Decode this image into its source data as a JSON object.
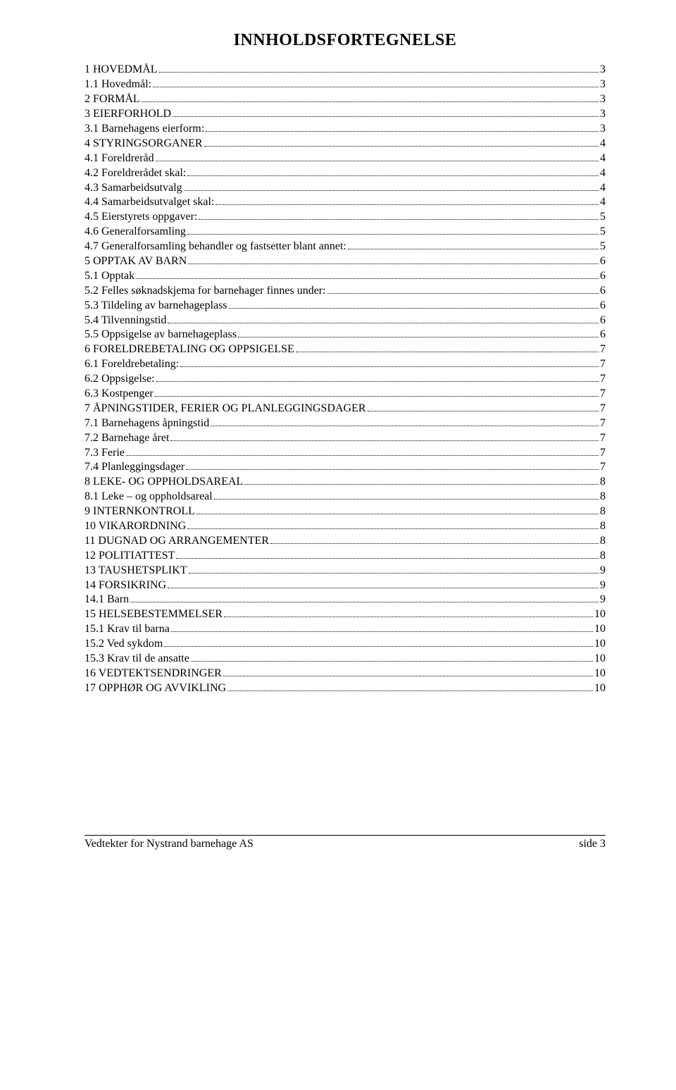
{
  "title": "INNHOLDSFORTEGNELSE",
  "toc": [
    {
      "label": "1 HOVEDMÅL",
      "page": "3"
    },
    {
      "label": "1.1 Hovedmål:",
      "page": "3"
    },
    {
      "label": "2 FORMÅL",
      "page": "3"
    },
    {
      "label": "3 EIERFORHOLD",
      "page": "3"
    },
    {
      "label": "3.1 Barnehagens eierform:",
      "page": "3"
    },
    {
      "label": "4 STYRINGSORGANER",
      "page": "4"
    },
    {
      "label": "4.1 Foreldreråd",
      "page": "4"
    },
    {
      "label": "4.2 Foreldrerådet skal:",
      "page": "4"
    },
    {
      "label": "4.3 Samarbeidsutvalg",
      "page": "4"
    },
    {
      "label": "4.4 Samarbeidsutvalget skal:",
      "page": "4"
    },
    {
      "label": "4.5 Eierstyrets oppgaver:",
      "page": "5"
    },
    {
      "label": "4.6 Generalforsamling",
      "page": "5"
    },
    {
      "label": "4.7 Generalforsamling behandler og fastsetter blant annet:",
      "page": "5"
    },
    {
      "label": "5 OPPTAK AV BARN",
      "page": "6"
    },
    {
      "label": "5.1 Opptak",
      "page": "6"
    },
    {
      "label": "5.2 Felles søknadskjema for barnehager finnes under:",
      "page": "6"
    },
    {
      "label": "5.3 Tildeling av barnehageplass",
      "page": "6"
    },
    {
      "label": "5.4 Tilvenningstid",
      "page": "6"
    },
    {
      "label": "5.5 Oppsigelse av barnehageplass",
      "page": "6"
    },
    {
      "label": "6 FORELDREBETALING OG OPPSIGELSE",
      "page": "7"
    },
    {
      "label": "6.1 Foreldrebetaling:",
      "page": "7"
    },
    {
      "label": "6.2 Oppsigelse:",
      "page": "7"
    },
    {
      "label": "6.3 Kostpenger",
      "page": "7"
    },
    {
      "label": "7 ÅPNINGSTIDER, FERIER OG PLANLEGGINGSDAGER",
      "page": "7"
    },
    {
      "label": "7.1 Barnehagens åpningstid",
      "page": "7"
    },
    {
      "label": "7.2 Barnehage året",
      "page": "7"
    },
    {
      "label": "7.3 Ferie",
      "page": "7"
    },
    {
      "label": "7.4 Planleggingsdager",
      "page": "7"
    },
    {
      "label": "8 LEKE- OG OPPHOLDSAREAL",
      "page": "8"
    },
    {
      "label": "8.1 Leke – og oppholdsareal",
      "page": "8"
    },
    {
      "label": "9 INTERNKONTROLL",
      "page": "8"
    },
    {
      "label": "10 VIKARORDNING",
      "page": "8"
    },
    {
      "label": "11 DUGNAD OG ARRANGEMENTER",
      "page": "8"
    },
    {
      "label": "12 POLITIATTEST",
      "page": "8"
    },
    {
      "label": "13 TAUSHETSPLIKT",
      "page": "9"
    },
    {
      "label": "14 FORSIKRING",
      "page": "9"
    },
    {
      "label": "14.1 Barn",
      "page": "9"
    },
    {
      "label": "15 HELSEBESTEMMELSER",
      "page": "10"
    },
    {
      "label": "15.1 Krav til barna",
      "page": "10"
    },
    {
      "label": "15.2 Ved sykdom",
      "page": "10"
    },
    {
      "label": "15.3 Krav til de ansatte",
      "page": "10"
    },
    {
      "label": "16 VEDTEKTSENDRINGER",
      "page": "10"
    },
    {
      "label": "17 OPPHØR OG AVVIKLING",
      "page": "10"
    }
  ],
  "footer": {
    "left": "Vedtekter for Nystrand barnehage AS",
    "right_label": "side",
    "page_number": "3"
  }
}
